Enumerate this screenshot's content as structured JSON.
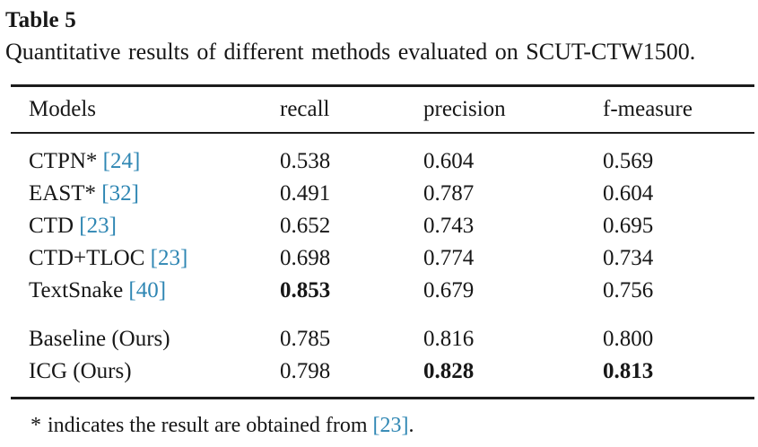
{
  "page": {
    "title": "Table 5",
    "caption": "Quantitative results of different methods evaluated on SCUT-CTW1500."
  },
  "table": {
    "headers": {
      "models": "Models",
      "recall": "recall",
      "precision": "precision",
      "f_measure": "f-measure"
    },
    "rows": [
      {
        "model": "CTPN*",
        "cite": "[24]",
        "recall": "0.538",
        "precision": "0.604",
        "f_measure": "0.569"
      },
      {
        "model": "EAST*",
        "cite": "[32]",
        "recall": "0.491",
        "precision": "0.787",
        "f_measure": "0.604"
      },
      {
        "model": "CTD",
        "cite": "[23]",
        "recall": "0.652",
        "precision": "0.743",
        "f_measure": "0.695"
      },
      {
        "model": "CTD+TLOC",
        "cite": "[23]",
        "recall": "0.698",
        "precision": "0.774",
        "f_measure": "0.734"
      },
      {
        "model": "TextSnake",
        "cite": "[40]",
        "recall": "0.853",
        "recall_bold": true,
        "precision": "0.679",
        "f_measure": "0.756"
      },
      {
        "model": "Baseline (Ours)",
        "cite": "",
        "recall": "0.785",
        "precision": "0.816",
        "f_measure": "0.800"
      },
      {
        "model": "ICG (Ours)",
        "cite": "",
        "recall": "0.798",
        "precision": "0.828",
        "precision_bold": true,
        "f_measure": "0.813",
        "f_measure_bold": true
      }
    ]
  },
  "footnote": {
    "marker": "*",
    "text": "indicates the result are obtained from",
    "cite": "[23]",
    "suffix": "."
  },
  "colors": {
    "citation_blue": "#2e86b3",
    "text": "#171717",
    "rule": "#1c1c1c",
    "background": "#ffffff"
  }
}
